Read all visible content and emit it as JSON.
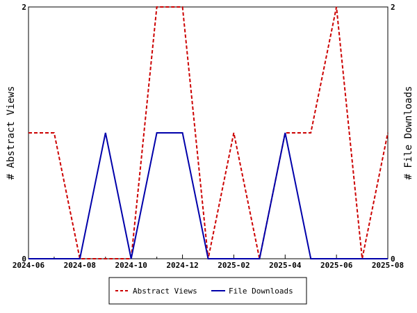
{
  "chart_data": {
    "type": "line",
    "x": [
      "2024-06",
      "2024-07",
      "2024-08",
      "2024-09",
      "2024-10",
      "2024-11",
      "2024-12",
      "2025-01",
      "2025-02",
      "2025-03",
      "2025-04",
      "2025-05",
      "2025-06",
      "2025-07",
      "2025-08"
    ],
    "x_tick_labels": [
      "2024-06",
      "2024-08",
      "2024-10",
      "2024-12",
      "2025-02",
      "2025-04",
      "2025-06",
      "2025-08"
    ],
    "series": [
      {
        "name": "Abstract Views",
        "axis": "left",
        "color": "#cc0000",
        "dash": "dashed",
        "values": [
          1,
          1,
          0,
          0,
          0,
          2,
          2,
          0,
          1,
          0,
          1,
          1,
          2,
          0,
          1
        ]
      },
      {
        "name": "File Downloads",
        "axis": "right",
        "color": "#0000aa",
        "dash": "solid",
        "values": [
          0,
          0,
          0,
          1,
          0,
          1,
          1,
          0,
          0,
          0,
          1,
          0,
          0,
          0,
          0
        ]
      }
    ],
    "ylabel": "# Abstract Views",
    "y2label": "# File Downloads",
    "ylim": [
      0,
      2
    ],
    "y2lim": [
      0,
      2
    ],
    "y_ticks": [
      "0",
      "2"
    ],
    "y2_ticks": [
      "0",
      "2"
    ],
    "grid": false,
    "legend_position": "bottom-center"
  }
}
